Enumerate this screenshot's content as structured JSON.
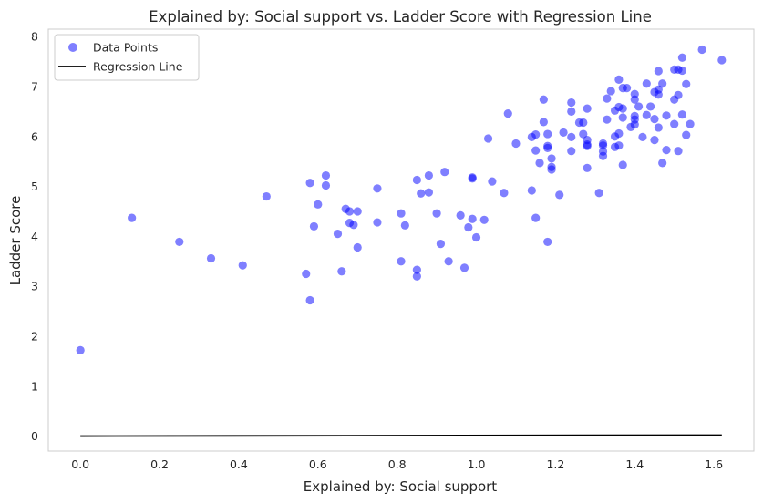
{
  "chart_data": {
    "type": "scatter",
    "title": "Explained by: Social support vs. Ladder Score with Regression Line",
    "xlabel": "Explained by: Social support",
    "ylabel": "Ladder Score",
    "xlim": [
      -0.081,
      1.701
    ],
    "ylim": [
      -0.3,
      8.15
    ],
    "xticks": [
      0.0,
      0.2,
      0.4,
      0.6,
      0.8,
      1.0,
      1.2,
      1.4,
      1.6
    ],
    "xtick_labels": [
      "0.0",
      "0.2",
      "0.4",
      "0.6",
      "0.8",
      "1.0",
      "1.2",
      "1.4",
      "1.6"
    ],
    "yticks": [
      0,
      1,
      2,
      3,
      4,
      5,
      6,
      7,
      8
    ],
    "ytick_labels": [
      "0",
      "1",
      "2",
      "3",
      "4",
      "5",
      "6",
      "7",
      "8"
    ],
    "grid": false,
    "legend": {
      "position": "top-left",
      "entries": [
        "Data Points",
        "Regression Line"
      ]
    },
    "series": [
      {
        "name": "Data Points",
        "kind": "scatter",
        "color": "#0000ff",
        "alpha": 0.5,
        "points": [
          [
            0.0,
            1.72
          ],
          [
            0.13,
            4.37
          ],
          [
            0.25,
            3.89
          ],
          [
            0.33,
            3.56
          ],
          [
            0.41,
            3.42
          ],
          [
            0.47,
            4.8
          ],
          [
            0.57,
            3.25
          ],
          [
            0.58,
            5.07
          ],
          [
            0.58,
            2.72
          ],
          [
            0.59,
            4.2
          ],
          [
            0.6,
            4.64
          ],
          [
            0.62,
            5.22
          ],
          [
            0.62,
            5.02
          ],
          [
            0.65,
            4.05
          ],
          [
            0.66,
            3.3
          ],
          [
            0.67,
            4.55
          ],
          [
            0.68,
            4.27
          ],
          [
            0.68,
            4.5
          ],
          [
            0.69,
            4.23
          ],
          [
            0.7,
            4.5
          ],
          [
            0.7,
            3.78
          ],
          [
            0.75,
            4.96
          ],
          [
            0.75,
            4.28
          ],
          [
            0.81,
            4.46
          ],
          [
            0.81,
            3.5
          ],
          [
            0.82,
            4.22
          ],
          [
            0.85,
            5.13
          ],
          [
            0.85,
            3.33
          ],
          [
            0.85,
            3.2
          ],
          [
            0.86,
            4.86
          ],
          [
            0.88,
            4.88
          ],
          [
            0.88,
            5.22
          ],
          [
            0.9,
            4.46
          ],
          [
            0.91,
            3.85
          ],
          [
            0.92,
            5.29
          ],
          [
            0.93,
            3.5
          ],
          [
            0.96,
            4.42
          ],
          [
            0.97,
            3.37
          ],
          [
            0.98,
            4.18
          ],
          [
            0.99,
            4.35
          ],
          [
            0.99,
            5.18
          ],
          [
            0.99,
            5.16
          ],
          [
            1.0,
            3.98
          ],
          [
            1.02,
            4.33
          ],
          [
            1.03,
            5.96
          ],
          [
            1.04,
            5.1
          ],
          [
            1.07,
            4.87
          ],
          [
            1.08,
            6.46
          ],
          [
            1.1,
            5.86
          ],
          [
            1.14,
            4.92
          ],
          [
            1.14,
            5.99
          ],
          [
            1.15,
            6.04
          ],
          [
            1.15,
            5.72
          ],
          [
            1.16,
            5.47
          ],
          [
            1.15,
            4.37
          ],
          [
            1.17,
            6.74
          ],
          [
            1.17,
            6.29
          ],
          [
            1.18,
            6.05
          ],
          [
            1.18,
            5.77
          ],
          [
            1.18,
            5.81
          ],
          [
            1.18,
            3.89
          ],
          [
            1.19,
            5.34
          ],
          [
            1.19,
            5.39
          ],
          [
            1.19,
            5.56
          ],
          [
            1.21,
            4.83
          ],
          [
            1.22,
            6.08
          ],
          [
            1.24,
            6.5
          ],
          [
            1.24,
            6.68
          ],
          [
            1.24,
            5.99
          ],
          [
            1.24,
            5.71
          ],
          [
            1.26,
            6.28
          ],
          [
            1.27,
            6.28
          ],
          [
            1.27,
            6.05
          ],
          [
            1.28,
            5.93
          ],
          [
            1.28,
            5.84
          ],
          [
            1.28,
            5.81
          ],
          [
            1.28,
            6.56
          ],
          [
            1.28,
            5.37
          ],
          [
            1.31,
            4.87
          ],
          [
            1.32,
            5.82
          ],
          [
            1.32,
            5.86
          ],
          [
            1.32,
            5.7
          ],
          [
            1.32,
            5.61
          ],
          [
            1.33,
            6.76
          ],
          [
            1.33,
            6.34
          ],
          [
            1.34,
            6.91
          ],
          [
            1.35,
            6.52
          ],
          [
            1.35,
            6.0
          ],
          [
            1.35,
            5.79
          ],
          [
            1.36,
            7.14
          ],
          [
            1.36,
            6.59
          ],
          [
            1.36,
            6.06
          ],
          [
            1.36,
            5.82
          ],
          [
            1.37,
            6.97
          ],
          [
            1.37,
            6.56
          ],
          [
            1.37,
            6.38
          ],
          [
            1.37,
            5.43
          ],
          [
            1.38,
            6.97
          ],
          [
            1.39,
            6.19
          ],
          [
            1.4,
            6.85
          ],
          [
            1.4,
            6.74
          ],
          [
            1.4,
            6.41
          ],
          [
            1.4,
            6.34
          ],
          [
            1.4,
            6.24
          ],
          [
            1.41,
            6.6
          ],
          [
            1.42,
            5.99
          ],
          [
            1.43,
            6.43
          ],
          [
            1.43,
            7.06
          ],
          [
            1.44,
            6.6
          ],
          [
            1.45,
            6.89
          ],
          [
            1.45,
            6.35
          ],
          [
            1.45,
            5.93
          ],
          [
            1.46,
            6.84
          ],
          [
            1.46,
            6.94
          ],
          [
            1.46,
            6.18
          ],
          [
            1.46,
            7.31
          ],
          [
            1.47,
            7.06
          ],
          [
            1.47,
            5.47
          ],
          [
            1.48,
            5.73
          ],
          [
            1.48,
            6.42
          ],
          [
            1.5,
            7.34
          ],
          [
            1.5,
            6.74
          ],
          [
            1.5,
            6.25
          ],
          [
            1.51,
            6.83
          ],
          [
            1.51,
            7.34
          ],
          [
            1.51,
            5.71
          ],
          [
            1.52,
            7.58
          ],
          [
            1.52,
            7.32
          ],
          [
            1.52,
            6.44
          ],
          [
            1.53,
            6.03
          ],
          [
            1.53,
            7.05
          ],
          [
            1.54,
            6.25
          ],
          [
            1.57,
            7.74
          ],
          [
            1.62,
            7.53
          ]
        ]
      },
      {
        "name": "Regression Line",
        "kind": "line",
        "color": "#000000",
        "x": [
          0.0,
          1.62
        ],
        "y": [
          0.0,
          0.02
        ]
      }
    ]
  }
}
